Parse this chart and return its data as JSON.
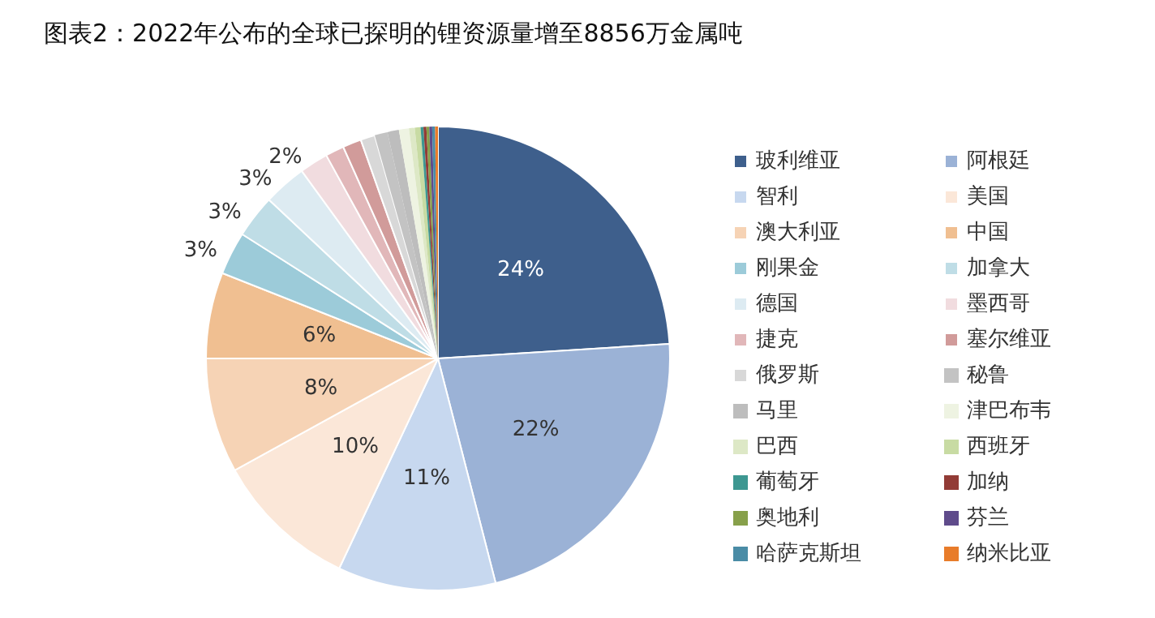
{
  "chart_data": {
    "type": "pie",
    "title": "图表2：2022年公布的全球已探明的锂资源量增至8856万金属吨",
    "categories": [
      "玻利维亚",
      "阿根廷",
      "智利",
      "美国",
      "澳大利亚",
      "中国",
      "刚果金",
      "加拿大",
      "德国",
      "墨西哥",
      "捷克",
      "塞尔维亚",
      "俄罗斯",
      "秘鲁",
      "马里",
      "津巴布韦",
      "巴西",
      "西班牙",
      "葡萄牙",
      "加纳",
      "奥地利",
      "芬兰",
      "哈萨克斯坦",
      "纳米比亚"
    ],
    "values": [
      24,
      22,
      11,
      10,
      8,
      6,
      3,
      3,
      3,
      2,
      1.3,
      1.3,
      1.0,
      0.9,
      0.8,
      0.7,
      0.4,
      0.4,
      0.2,
      0.2,
      0.2,
      0.2,
      0.2,
      0.2
    ],
    "value_labels": [
      "24%",
      "22%",
      "11%",
      "10%",
      "8%",
      "6%",
      "3%",
      "3%",
      "3%",
      "2%",
      null,
      null,
      null,
      null,
      null,
      null,
      null,
      null,
      null,
      null,
      null,
      null,
      null,
      null
    ],
    "colors": [
      "#3e5f8c",
      "#9bb2d6",
      "#c7d8ef",
      "#fbe7d8",
      "#f6d3b5",
      "#f0bf91",
      "#9ccbd9",
      "#bfdde6",
      "#ddebf2",
      "#f1dcdf",
      "#e1b7b9",
      "#d19b9a",
      "#d8d8d8",
      "#c3c3c3",
      "#bdbdbd",
      "#eef3e2",
      "#dde8c6",
      "#c8dba3",
      "#3d9791",
      "#923b36",
      "#87a04a",
      "#5f4b8b",
      "#4a8ca6",
      "#e87c2a"
    ],
    "legend": "right"
  }
}
